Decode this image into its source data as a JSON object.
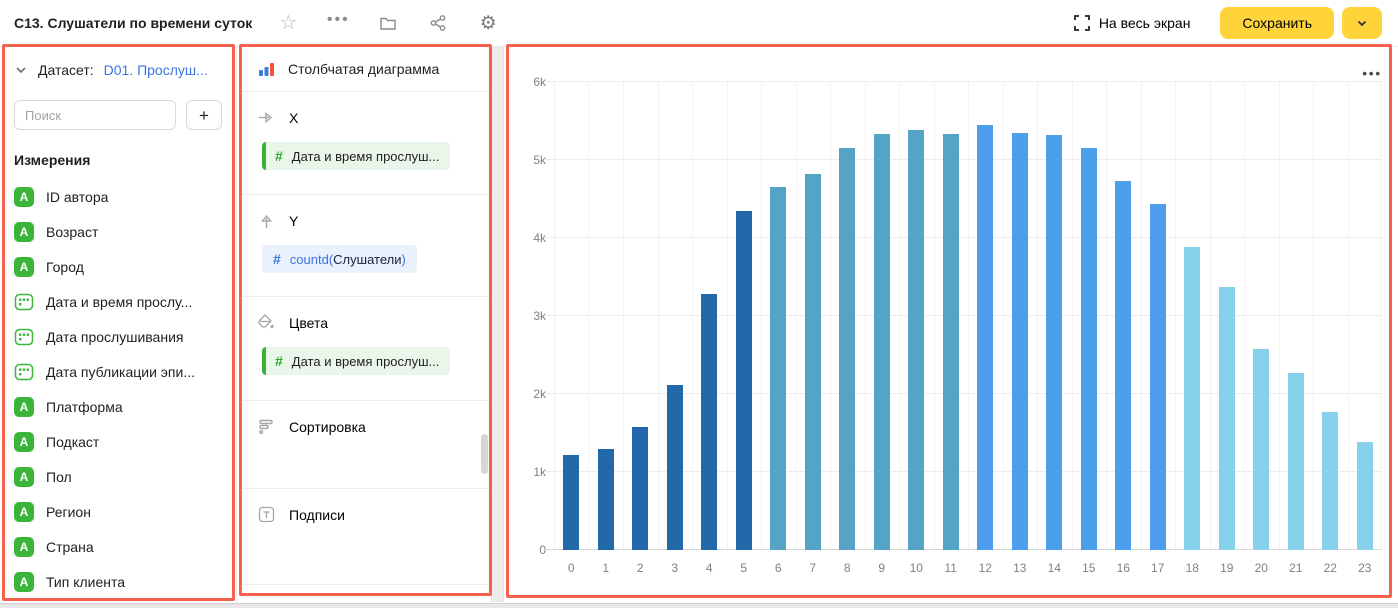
{
  "header": {
    "title": "C13. Слушатели по времени суток",
    "fullscreen_label": "На весь экран",
    "save_label": "Сохранить"
  },
  "sidebar": {
    "dataset_label": "Датасет:",
    "dataset_value": "D01. Прослуш...",
    "search_placeholder": "Поиск",
    "add_button_label": "+",
    "section_title": "Измерения",
    "fields": [
      {
        "name": "ID автора",
        "type": "string"
      },
      {
        "name": "Возраст",
        "type": "string"
      },
      {
        "name": "Город",
        "type": "string"
      },
      {
        "name": "Дата и время прослу...",
        "type": "date"
      },
      {
        "name": "Дата прослушивания",
        "type": "date"
      },
      {
        "name": "Дата публикации эпи...",
        "type": "date"
      },
      {
        "name": "Платформа",
        "type": "string"
      },
      {
        "name": "Подкаст",
        "type": "string"
      },
      {
        "name": "Пол",
        "type": "string"
      },
      {
        "name": "Регион",
        "type": "string"
      },
      {
        "name": "Страна",
        "type": "string"
      },
      {
        "name": "Тип клиента",
        "type": "string"
      }
    ]
  },
  "config": {
    "chart_type": "Столбчатая диаграмма",
    "x": {
      "label": "X",
      "field": "Дата и время прослуш..."
    },
    "y": {
      "label": "Y",
      "fn_open": "countd(",
      "field": "Слушатели",
      "fn_close": ")"
    },
    "colors": {
      "label": "Цвета",
      "field": "Дата и время прослуш..."
    },
    "sort": {
      "label": "Сортировка"
    },
    "labels": {
      "label": "Подписи"
    }
  },
  "chart_menu": "•••",
  "theme": {
    "accent_yellow": "#ffd43b",
    "link_blue": "#3b73e3",
    "dimension_green": "#36b336",
    "annotation_red": "#f4624d"
  },
  "chart_data": {
    "type": "bar",
    "title": "",
    "xlabel": "",
    "ylabel": "",
    "categories": [
      "0",
      "1",
      "2",
      "3",
      "4",
      "5",
      "6",
      "7",
      "8",
      "9",
      "10",
      "11",
      "12",
      "13",
      "14",
      "15",
      "16",
      "17",
      "18",
      "19",
      "20",
      "21",
      "22",
      "23"
    ],
    "values": [
      1220,
      1290,
      1580,
      2120,
      3280,
      4350,
      4650,
      4820,
      5150,
      5330,
      5380,
      5330,
      5450,
      5340,
      5320,
      5150,
      4730,
      4430,
      3880,
      3370,
      2580,
      2270,
      1770,
      1380
    ],
    "ylim": [
      0,
      6000
    ],
    "yticks": [
      "0",
      "1k",
      "2k",
      "3k",
      "4k",
      "5k",
      "6k"
    ],
    "grid": true,
    "legend": false,
    "color_groups": [
      {
        "hours": "0-5",
        "color": "#2368a8"
      },
      {
        "hours": "6-11",
        "color": "#55a4c5"
      },
      {
        "hours": "12-17",
        "color": "#4d9eec"
      },
      {
        "hours": "18-23",
        "color": "#87d1ec"
      }
    ]
  }
}
